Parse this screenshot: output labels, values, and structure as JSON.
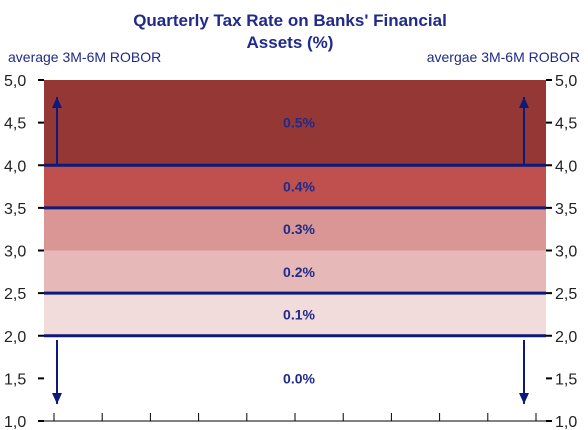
{
  "chart_data": {
    "type": "area",
    "title_lines": [
      "Quarterly Tax Rate on Banks' Financial",
      "Assets (%)"
    ],
    "ylabel_left": "average 3M-6M ROBOR",
    "ylabel_right": "avergae 3M-6M ROBOR",
    "ylim": [
      1.0,
      5.0
    ],
    "yticks": [
      1.0,
      1.5,
      2.0,
      2.5,
      3.0,
      3.5,
      4.0,
      4.5,
      5.0
    ],
    "ytick_labels": [
      "1,0",
      "1,5",
      "2,0",
      "2,5",
      "3,0",
      "3,5",
      "4,0",
      "4,5",
      "5,0"
    ],
    "x_tick_count": 10,
    "bands": [
      {
        "from": 1.0,
        "to": 2.0,
        "label": "0.0%",
        "color": "#ffffff"
      },
      {
        "from": 2.0,
        "to": 2.5,
        "label": "0.1%",
        "color": "#f2dcdb"
      },
      {
        "from": 2.5,
        "to": 3.0,
        "label": "0.2%",
        "color": "#e6b9b8"
      },
      {
        "from": 3.0,
        "to": 3.5,
        "label": "0.3%",
        "color": "#d99694"
      },
      {
        "from": 3.5,
        "to": 4.0,
        "label": "0.4%",
        "color": "#c0504d"
      },
      {
        "from": 4.0,
        "to": 5.0,
        "label": "0.5%",
        "color": "#953735"
      }
    ],
    "thresholds": [
      2.0,
      2.5,
      3.5,
      4.0
    ],
    "arrows": [
      {
        "side": "left",
        "direction": "up",
        "from": 4.0,
        "to": 4.8
      },
      {
        "side": "right",
        "direction": "up",
        "from": 4.0,
        "to": 4.8
      },
      {
        "side": "left",
        "direction": "down",
        "from": 1.95,
        "to": 1.2
      },
      {
        "side": "right",
        "direction": "down",
        "from": 1.95,
        "to": 1.2
      }
    ],
    "line_color": "#0d1a7a"
  }
}
